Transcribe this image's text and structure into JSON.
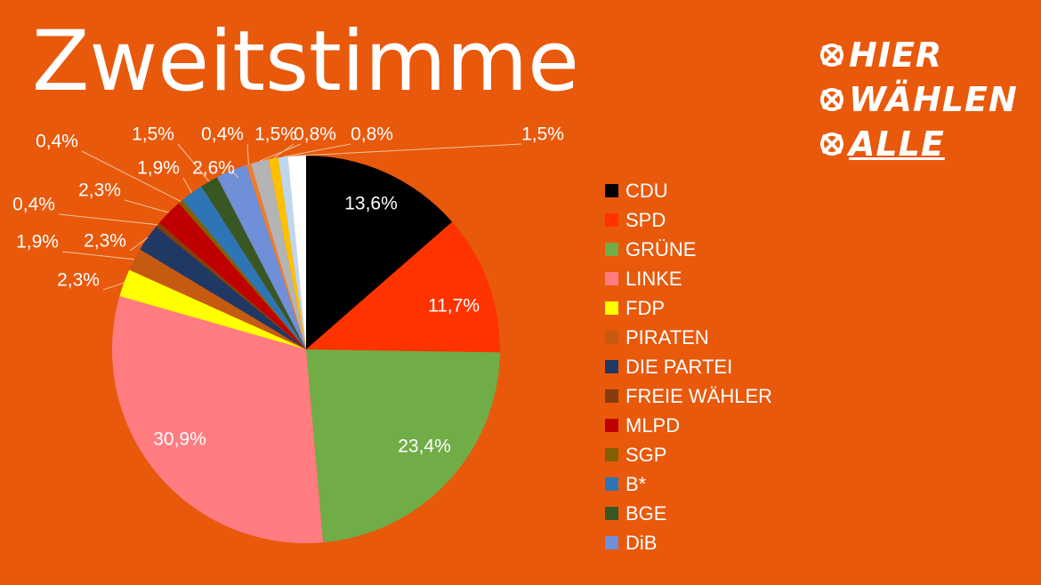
{
  "title": "Zweitstimme",
  "logo": {
    "lines": [
      "HIER",
      "WÄHLEN",
      "ALLE"
    ],
    "mark_icon": "ballot-cross-icon"
  },
  "colors": {
    "background": "#e8590c",
    "leader_line": "#f3c29c"
  },
  "chart_data": {
    "type": "pie",
    "title": "Zweitstimme",
    "categories": [
      "CDU",
      "SPD",
      "GRÜNE",
      "LINKE",
      "FDP",
      "PIRATEN",
      "DIE PARTEI",
      "FREIE WÄHLER",
      "MLPD",
      "SGP",
      "B*",
      "BGE",
      "DiB",
      "",
      "",
      "",
      "",
      ""
    ],
    "values": [
      13.6,
      11.7,
      23.4,
      30.9,
      2.3,
      1.9,
      2.3,
      0.4,
      2.3,
      0.4,
      1.9,
      1.5,
      2.6,
      0.4,
      1.5,
      0.8,
      0.8,
      1.5
    ],
    "labels": [
      "13,6%",
      "11,7%",
      "23,4%",
      "30,9%",
      "2,3%",
      "1,9%",
      "2,3%",
      "0,4%",
      "2,3%",
      "0,4%",
      "1,9%",
      "1,5%",
      "2,6%",
      "0,4%",
      "1,5%",
      "0,8%",
      "0,8%",
      "1,5%"
    ],
    "colors": [
      "#000000",
      "#ff3300",
      "#70ad47",
      "#ff7c80",
      "#ffff00",
      "#c55a11",
      "#203864",
      "#843c0c",
      "#c00000",
      "#806000",
      "#2e75b6",
      "#385723",
      "#6f8fd8",
      "#ed7d31",
      "#b4b4b4",
      "#ffc000",
      "#bdd7ee",
      "#ffffff"
    ],
    "legend_position": "right",
    "legend": [
      "CDU",
      "SPD",
      "GRÜNE",
      "LINKE",
      "FDP",
      "PIRATEN",
      "DIE PARTEI",
      "FREIE WÄHLER",
      "MLPD",
      "SGP",
      "B*",
      "BGE",
      "DiB"
    ]
  }
}
